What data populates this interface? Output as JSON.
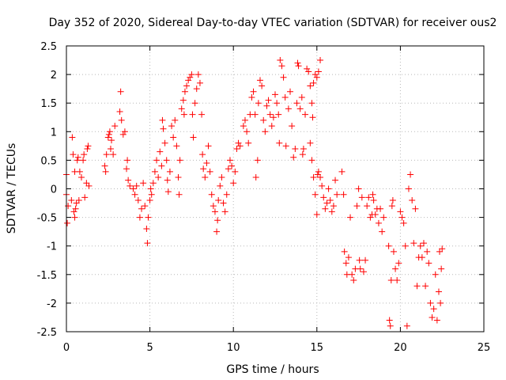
{
  "chart_data": {
    "type": "scatter",
    "title": "Day 352 of 2020, Sidereal Day-to-day VTEC variation (SDTVAR) for receiver ous2",
    "xlabel": "GPS time / hours",
    "ylabel": "SDTVAR / TECUs",
    "xlim": [
      0,
      25
    ],
    "ylim": [
      -2.5,
      2.5
    ],
    "x_ticks": [
      0,
      5,
      10,
      15,
      20,
      25
    ],
    "y_ticks": [
      -2.5,
      -2,
      -1.5,
      -1,
      -0.5,
      0,
      0.5,
      1,
      1.5,
      2,
      2.5
    ],
    "x_tick_labels": [
      "0",
      "5",
      "10",
      "15",
      "20",
      "25"
    ],
    "y_tick_labels": [
      "-2.5",
      "-2",
      "-1.5",
      "-1",
      "-0.5",
      "0",
      "0.5",
      "1",
      "1.5",
      "2",
      "2.5"
    ],
    "grid": true,
    "marker": "+",
    "series": [
      {
        "name": "ous2",
        "color": "#ff0000",
        "points": [
          [
            0.0,
            -0.1
          ],
          [
            0.0,
            0.25
          ],
          [
            0.05,
            -0.6
          ],
          [
            0.1,
            -0.3
          ],
          [
            0.3,
            -0.2
          ],
          [
            0.35,
            0.9
          ],
          [
            0.4,
            0.6
          ],
          [
            0.45,
            -0.4
          ],
          [
            0.5,
            -0.5
          ],
          [
            0.5,
            0.3
          ],
          [
            0.55,
            -0.35
          ],
          [
            0.6,
            -0.25
          ],
          [
            0.65,
            0.5
          ],
          [
            0.7,
            0.55
          ],
          [
            0.75,
            -0.2
          ],
          [
            0.8,
            0.3
          ],
          [
            0.9,
            0.2
          ],
          [
            1.0,
            0.5
          ],
          [
            1.05,
            0.6
          ],
          [
            1.1,
            -0.15
          ],
          [
            1.2,
            0.1
          ],
          [
            1.25,
            0.7
          ],
          [
            1.3,
            0.75
          ],
          [
            1.35,
            0.05
          ],
          [
            2.3,
            0.4
          ],
          [
            2.35,
            0.3
          ],
          [
            2.4,
            0.6
          ],
          [
            2.5,
            0.9
          ],
          [
            2.55,
            0.95
          ],
          [
            2.6,
            1.0
          ],
          [
            2.65,
            0.7
          ],
          [
            2.7,
            0.85
          ],
          [
            2.8,
            0.6
          ],
          [
            2.9,
            1.1
          ],
          [
            3.2,
            1.35
          ],
          [
            3.25,
            1.7
          ],
          [
            3.3,
            1.2
          ],
          [
            3.4,
            0.95
          ],
          [
            3.5,
            1.0
          ],
          [
            3.6,
            0.35
          ],
          [
            3.65,
            0.5
          ],
          [
            3.7,
            0.15
          ],
          [
            3.8,
            0.05
          ],
          [
            4.0,
            0.0
          ],
          [
            4.1,
            -0.1
          ],
          [
            4.2,
            0.05
          ],
          [
            4.3,
            -0.2
          ],
          [
            4.4,
            -0.5
          ],
          [
            4.5,
            -0.35
          ],
          [
            4.6,
            0.1
          ],
          [
            4.7,
            -0.3
          ],
          [
            4.8,
            -0.7
          ],
          [
            4.85,
            -0.95
          ],
          [
            4.9,
            -0.5
          ],
          [
            5.0,
            -0.2
          ],
          [
            5.05,
            0.0
          ],
          [
            5.1,
            -0.1
          ],
          [
            5.2,
            0.1
          ],
          [
            5.3,
            0.3
          ],
          [
            5.4,
            0.5
          ],
          [
            5.5,
            0.2
          ],
          [
            5.6,
            0.65
          ],
          [
            5.7,
            0.4
          ],
          [
            5.75,
            1.2
          ],
          [
            5.8,
            1.05
          ],
          [
            5.9,
            0.8
          ],
          [
            6.0,
            0.5
          ],
          [
            6.05,
            0.15
          ],
          [
            6.1,
            -0.05
          ],
          [
            6.2,
            0.3
          ],
          [
            6.3,
            1.1
          ],
          [
            6.4,
            0.9
          ],
          [
            6.5,
            1.2
          ],
          [
            6.6,
            0.75
          ],
          [
            6.7,
            0.2
          ],
          [
            6.75,
            -0.1
          ],
          [
            6.8,
            0.5
          ],
          [
            6.9,
            1.4
          ],
          [
            7.0,
            1.55
          ],
          [
            7.05,
            1.3
          ],
          [
            7.1,
            1.7
          ],
          [
            7.2,
            1.8
          ],
          [
            7.3,
            1.9
          ],
          [
            7.4,
            1.95
          ],
          [
            7.5,
            2.0
          ],
          [
            7.55,
            1.3
          ],
          [
            7.6,
            0.9
          ],
          [
            7.7,
            1.5
          ],
          [
            7.8,
            1.75
          ],
          [
            7.9,
            2.0
          ],
          [
            8.0,
            1.85
          ],
          [
            8.1,
            1.3
          ],
          [
            8.15,
            0.6
          ],
          [
            8.2,
            0.35
          ],
          [
            8.3,
            0.2
          ],
          [
            8.4,
            0.45
          ],
          [
            8.5,
            0.75
          ],
          [
            8.6,
            0.3
          ],
          [
            8.7,
            -0.1
          ],
          [
            8.8,
            -0.3
          ],
          [
            8.9,
            -0.4
          ],
          [
            9.0,
            -0.75
          ],
          [
            9.05,
            -0.55
          ],
          [
            9.1,
            -0.2
          ],
          [
            9.2,
            0.05
          ],
          [
            9.3,
            0.2
          ],
          [
            9.4,
            -0.25
          ],
          [
            9.5,
            -0.4
          ],
          [
            9.6,
            -0.1
          ],
          [
            9.7,
            0.35
          ],
          [
            9.8,
            0.5
          ],
          [
            9.9,
            0.4
          ],
          [
            10.0,
            0.1
          ],
          [
            10.1,
            0.3
          ],
          [
            10.2,
            0.7
          ],
          [
            10.3,
            0.8
          ],
          [
            10.4,
            0.75
          ],
          [
            10.6,
            1.1
          ],
          [
            10.7,
            1.2
          ],
          [
            10.8,
            1.0
          ],
          [
            10.9,
            0.8
          ],
          [
            11.0,
            1.3
          ],
          [
            11.1,
            1.6
          ],
          [
            11.2,
            1.7
          ],
          [
            11.3,
            1.3
          ],
          [
            11.35,
            0.2
          ],
          [
            11.45,
            0.5
          ],
          [
            11.5,
            1.5
          ],
          [
            11.6,
            1.9
          ],
          [
            11.7,
            1.8
          ],
          [
            11.8,
            1.2
          ],
          [
            11.9,
            1.0
          ],
          [
            12.0,
            1.45
          ],
          [
            12.1,
            1.55
          ],
          [
            12.2,
            1.3
          ],
          [
            12.3,
            1.1
          ],
          [
            12.4,
            1.25
          ],
          [
            12.5,
            1.65
          ],
          [
            12.6,
            1.5
          ],
          [
            12.7,
            1.3
          ],
          [
            12.75,
            0.8
          ],
          [
            12.8,
            2.25
          ],
          [
            12.9,
            2.15
          ],
          [
            13.0,
            1.95
          ],
          [
            13.1,
            1.6
          ],
          [
            13.15,
            0.75
          ],
          [
            13.3,
            1.4
          ],
          [
            13.4,
            1.7
          ],
          [
            13.5,
            1.1
          ],
          [
            13.6,
            0.55
          ],
          [
            13.7,
            0.7
          ],
          [
            13.8,
            1.5
          ],
          [
            13.85,
            2.2
          ],
          [
            13.9,
            2.15
          ],
          [
            14.0,
            1.4
          ],
          [
            14.1,
            1.6
          ],
          [
            14.15,
            0.6
          ],
          [
            14.2,
            0.7
          ],
          [
            14.3,
            1.3
          ],
          [
            14.4,
            2.1
          ],
          [
            14.5,
            2.05
          ],
          [
            14.6,
            1.8
          ],
          [
            14.7,
            1.5
          ],
          [
            14.75,
            1.25
          ],
          [
            14.8,
            1.85
          ],
          [
            14.9,
            2.0
          ],
          [
            15.0,
            1.95
          ],
          [
            15.1,
            2.05
          ],
          [
            15.2,
            2.25
          ],
          [
            14.6,
            0.8
          ],
          [
            14.7,
            0.5
          ],
          [
            14.8,
            0.2
          ],
          [
            14.9,
            -0.1
          ],
          [
            15.0,
            -0.45
          ],
          [
            15.05,
            0.25
          ],
          [
            15.1,
            0.3
          ],
          [
            15.2,
            0.2
          ],
          [
            15.3,
            0.05
          ],
          [
            15.4,
            -0.15
          ],
          [
            15.5,
            -0.35
          ],
          [
            15.6,
            -0.25
          ],
          [
            15.7,
            0.0
          ],
          [
            15.8,
            -0.2
          ],
          [
            15.9,
            -0.4
          ],
          [
            16.0,
            -0.3
          ],
          [
            16.1,
            0.15
          ],
          [
            16.2,
            -0.1
          ],
          [
            16.5,
            0.3
          ],
          [
            16.6,
            -0.1
          ],
          [
            16.65,
            -1.1
          ],
          [
            16.75,
            -1.3
          ],
          [
            16.8,
            -1.5
          ],
          [
            16.9,
            -1.2
          ],
          [
            17.0,
            -0.5
          ],
          [
            17.1,
            -1.5
          ],
          [
            17.2,
            -1.6
          ],
          [
            17.3,
            -1.4
          ],
          [
            17.4,
            -0.3
          ],
          [
            17.5,
            0.0
          ],
          [
            17.55,
            -1.25
          ],
          [
            17.6,
            -1.4
          ],
          [
            17.7,
            -0.15
          ],
          [
            17.8,
            -1.45
          ],
          [
            17.9,
            -1.25
          ],
          [
            18.0,
            -0.3
          ],
          [
            18.1,
            -0.15
          ],
          [
            18.2,
            -0.5
          ],
          [
            18.3,
            -0.45
          ],
          [
            18.35,
            -0.1
          ],
          [
            18.4,
            -0.2
          ],
          [
            18.5,
            -0.45
          ],
          [
            18.6,
            -0.35
          ],
          [
            18.7,
            -0.6
          ],
          [
            18.8,
            -0.35
          ],
          [
            18.9,
            -0.75
          ],
          [
            19.0,
            -0.5
          ],
          [
            19.3,
            -1.0
          ],
          [
            19.35,
            -2.3
          ],
          [
            19.4,
            -2.4
          ],
          [
            19.45,
            -1.6
          ],
          [
            19.5,
            -0.3
          ],
          [
            19.55,
            -0.2
          ],
          [
            19.6,
            -1.1
          ],
          [
            19.7,
            -1.4
          ],
          [
            19.8,
            -1.6
          ],
          [
            19.9,
            -1.3
          ],
          [
            20.0,
            -0.4
          ],
          [
            20.1,
            -0.5
          ],
          [
            20.2,
            -0.6
          ],
          [
            20.3,
            -1.0
          ],
          [
            20.4,
            -2.4
          ],
          [
            20.5,
            0.0
          ],
          [
            20.6,
            0.25
          ],
          [
            20.7,
            -0.2
          ],
          [
            20.8,
            -0.95
          ],
          [
            20.9,
            -0.35
          ],
          [
            21.0,
            -1.7
          ],
          [
            21.1,
            -1.2
          ],
          [
            21.2,
            -1.0
          ],
          [
            21.3,
            -1.2
          ],
          [
            21.4,
            -0.95
          ],
          [
            21.5,
            -1.7
          ],
          [
            21.6,
            -1.1
          ],
          [
            21.7,
            -1.3
          ],
          [
            21.8,
            -2.0
          ],
          [
            21.9,
            -2.25
          ],
          [
            22.0,
            -2.1
          ],
          [
            22.1,
            -1.5
          ],
          [
            22.2,
            -2.3
          ],
          [
            22.3,
            -1.8
          ],
          [
            22.35,
            -1.1
          ],
          [
            22.4,
            -2.0
          ],
          [
            22.45,
            -1.4
          ],
          [
            22.5,
            -1.05
          ]
        ]
      }
    ]
  }
}
